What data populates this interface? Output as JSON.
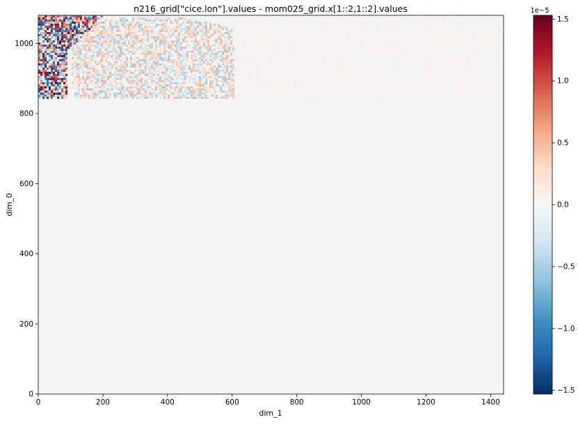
{
  "chart_data": {
    "type": "heatmap",
    "title": "n216_grid[\"cice.lon\"].values - mom025_grid.x[1::2,1::2].values",
    "xlabel": "dim_1",
    "ylabel": "dim_0",
    "xlim": [
      0,
      1440
    ],
    "ylim": [
      0,
      1080
    ],
    "x_ticks": [
      0,
      200,
      400,
      600,
      800,
      1000,
      1200,
      1400
    ],
    "y_ticks": [
      0,
      200,
      400,
      600,
      800,
      1000
    ],
    "x_tick_labels": [
      "0",
      "200",
      "400",
      "600",
      "800",
      "1000",
      "1200",
      "1400"
    ],
    "y_tick_labels": [
      "0",
      "200",
      "400",
      "600",
      "800",
      "1000"
    ],
    "grid": false,
    "colormap": "RdBu_r",
    "colorbar": {
      "vmin": -1.53,
      "vmax": 1.53,
      "scale_label": "1e−5",
      "ticks": [
        -1.5,
        -1.0,
        -0.5,
        0.0,
        0.5,
        1.0,
        1.5
      ],
      "tick_labels": [
        "−1.5",
        "−1.0",
        "−0.5",
        "0.0",
        "0.5",
        "1.0",
        "1.5"
      ],
      "position": "right"
    },
    "regions": {
      "noisy_band_rows": [
        843,
        1080
      ],
      "uniform_zero_rows": [
        0,
        843
      ],
      "high_noise_corner_cols": [
        0,
        90
      ],
      "moderate_noise_dome_cols": [
        100,
        605
      ],
      "faint_dome_cols": [
        860,
        1380
      ]
    }
  }
}
